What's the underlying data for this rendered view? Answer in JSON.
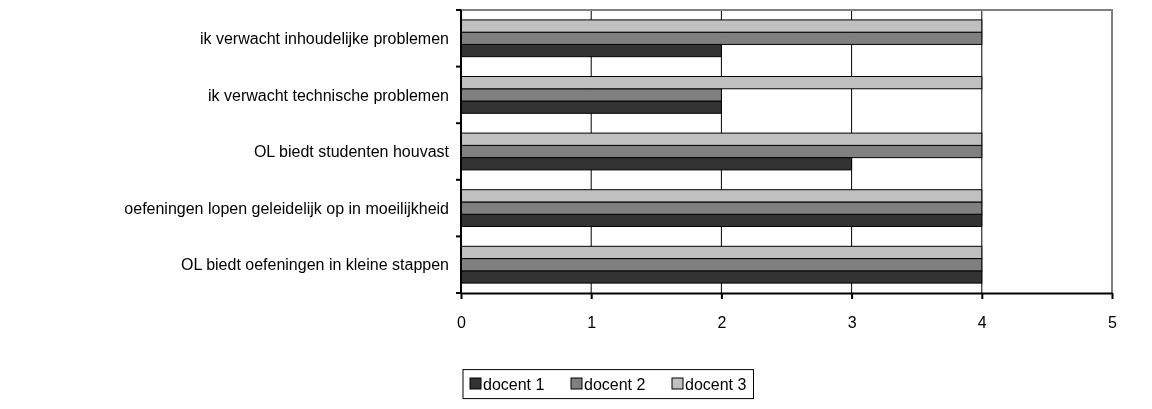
{
  "chart_data": {
    "type": "bar",
    "orientation": "horizontal",
    "categories": [
      "ik verwacht inhoudelijke problemen",
      "ik verwacht technische problemen",
      "OL biedt studenten houvast",
      "oefeningen lopen geleidelijk op in moeilijkheid",
      "OL biedt oefeningen in kleine stappen"
    ],
    "series": [
      {
        "name": "docent 1",
        "color": "#333333",
        "values": [
          2,
          2,
          3,
          4,
          4
        ]
      },
      {
        "name": "docent 2",
        "color": "#808080",
        "values": [
          4,
          2,
          4,
          4,
          4
        ]
      },
      {
        "name": "docent 3",
        "color": "#c0c0c0",
        "values": [
          4,
          4,
          4,
          4,
          4
        ]
      }
    ],
    "xlim": [
      0,
      5
    ],
    "xticks": [
      0,
      1,
      2,
      3,
      4,
      5
    ],
    "grid": "x",
    "legend": "bottom"
  }
}
